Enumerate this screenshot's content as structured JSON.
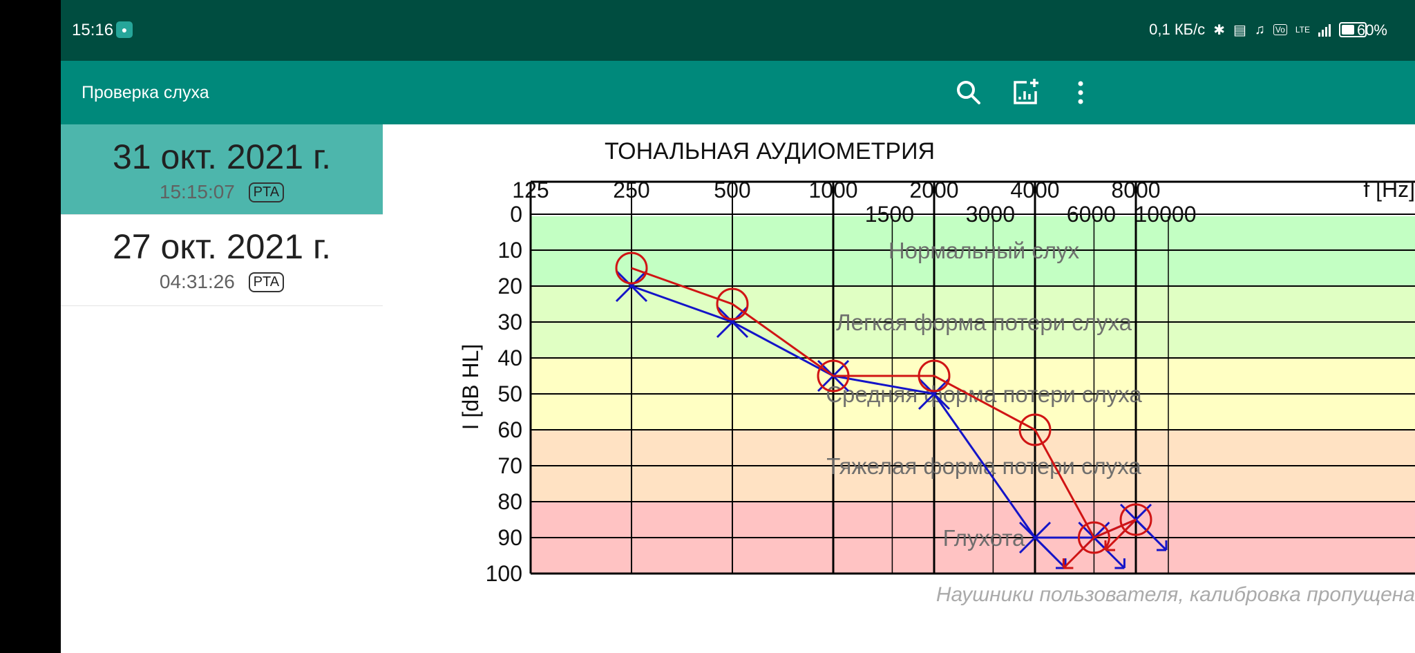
{
  "statusbar": {
    "time": "15:16",
    "net_speed": "0,1 КБ/с",
    "lte_label": "LTE",
    "volte_label": "Vo",
    "battery": "60%",
    "icons": [
      "water-drop-icon",
      "bluetooth-icon",
      "vibrate-icon",
      "mute-icon",
      "volte-icon",
      "signal-icon",
      "battery-icon"
    ]
  },
  "appbar": {
    "title": "Проверка слуха",
    "icons": [
      "search-icon",
      "add-chart-icon",
      "more-vert-icon"
    ]
  },
  "sessions": [
    {
      "date": "31 окт. 2021 г.",
      "time": "15:15:07",
      "badge": "PTA",
      "selected": true
    },
    {
      "date": "27 окт. 2021 г.",
      "time": "04:31:26",
      "badge": "PTA",
      "selected": false
    }
  ],
  "chart_data": {
    "type": "line",
    "title": "ТОНАЛЬНАЯ АУДИОМЕТРИЯ",
    "xlabel": "f [Hz]",
    "ylabel": "I [dB HL]",
    "x_scale": "log",
    "xlim": [
      125,
      10000
    ],
    "ylim": [
      0,
      100
    ],
    "y_ticks": [
      0,
      10,
      20,
      30,
      40,
      50,
      60,
      70,
      80,
      90,
      100
    ],
    "x_ticks_main": [
      125,
      250,
      500,
      1000,
      2000,
      4000,
      8000
    ],
    "x_ticks_secondary": [
      1500,
      3000,
      6000,
      10000
    ],
    "grid": true,
    "zones": [
      {
        "label": "Нормальный слух",
        "from": 0,
        "to": 20,
        "color": "#c3ffc3"
      },
      {
        "label": "Легкая форма потери слуха",
        "from": 20,
        "to": 40,
        "color": "#e0ffc3"
      },
      {
        "label": "Средняя форма потери слуха",
        "from": 40,
        "to": 60,
        "color": "#ffffc3"
      },
      {
        "label": "Тяжелая форма потери слуха",
        "from": 60,
        "to": 80,
        "color": "#ffe2c3"
      },
      {
        "label": "Глухота",
        "from": 80,
        "to": 100,
        "color": "#ffc3c3"
      }
    ],
    "series": [
      {
        "color": "#1414c8",
        "marker": "x",
        "points": [
          {
            "x": 250,
            "y": 20
          },
          {
            "x": 500,
            "y": 30
          },
          {
            "x": 1000,
            "y": 45
          },
          {
            "x": 2000,
            "y": 50
          },
          {
            "x": 4000,
            "y": 90,
            "no_response": true
          },
          {
            "x": 6000,
            "y": 90,
            "no_response": true
          },
          {
            "x": 8000,
            "y": 85,
            "no_response": true
          }
        ]
      },
      {
        "color": "#d01414",
        "marker": "o",
        "points": [
          {
            "x": 250,
            "y": 15
          },
          {
            "x": 500,
            "y": 25
          },
          {
            "x": 1000,
            "y": 45
          },
          {
            "x": 2000,
            "y": 45
          },
          {
            "x": 4000,
            "y": 60
          },
          {
            "x": 6000,
            "y": 90,
            "no_response": true
          },
          {
            "x": 8000,
            "y": 85,
            "no_response": true
          }
        ]
      }
    ],
    "footnote": "Наушники пользователя, калибровка пропущена"
  }
}
